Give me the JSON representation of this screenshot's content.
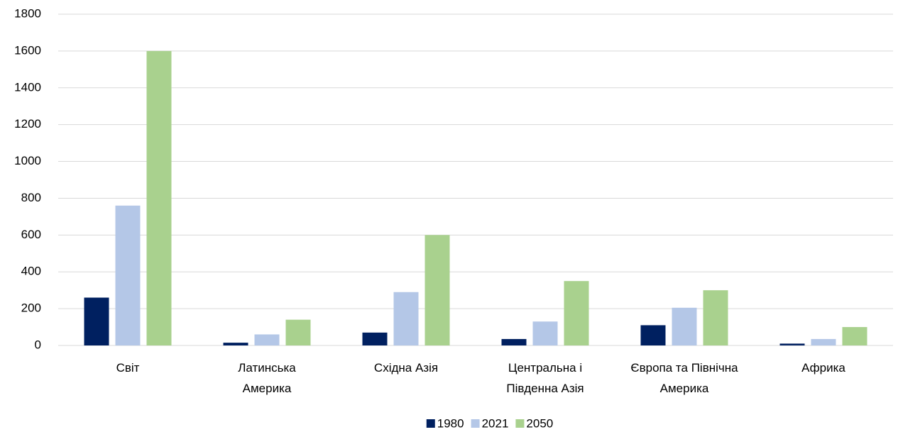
{
  "chart_data": {
    "type": "bar",
    "categories": [
      "Світ",
      "Латинська\nАмерика",
      "Східна Азія",
      "Центральна і\nПівденна Азія",
      "Європа та Північна\nАмерика",
      "Африка"
    ],
    "series": [
      {
        "name": "1980",
        "color": "#002060",
        "values": [
          260,
          15,
          70,
          35,
          110,
          10
        ]
      },
      {
        "name": "2021",
        "color": "#b4c7e7",
        "values": [
          760,
          60,
          290,
          130,
          205,
          35
        ]
      },
      {
        "name": "2050",
        "color": "#a9d18e",
        "values": [
          1600,
          140,
          600,
          350,
          300,
          100
        ]
      }
    ],
    "ylim": [
      0,
      1800
    ],
    "yticks": [
      0,
      200,
      400,
      600,
      800,
      1000,
      1200,
      1400,
      1600,
      1800
    ],
    "grid": true,
    "legend": "bottom"
  }
}
